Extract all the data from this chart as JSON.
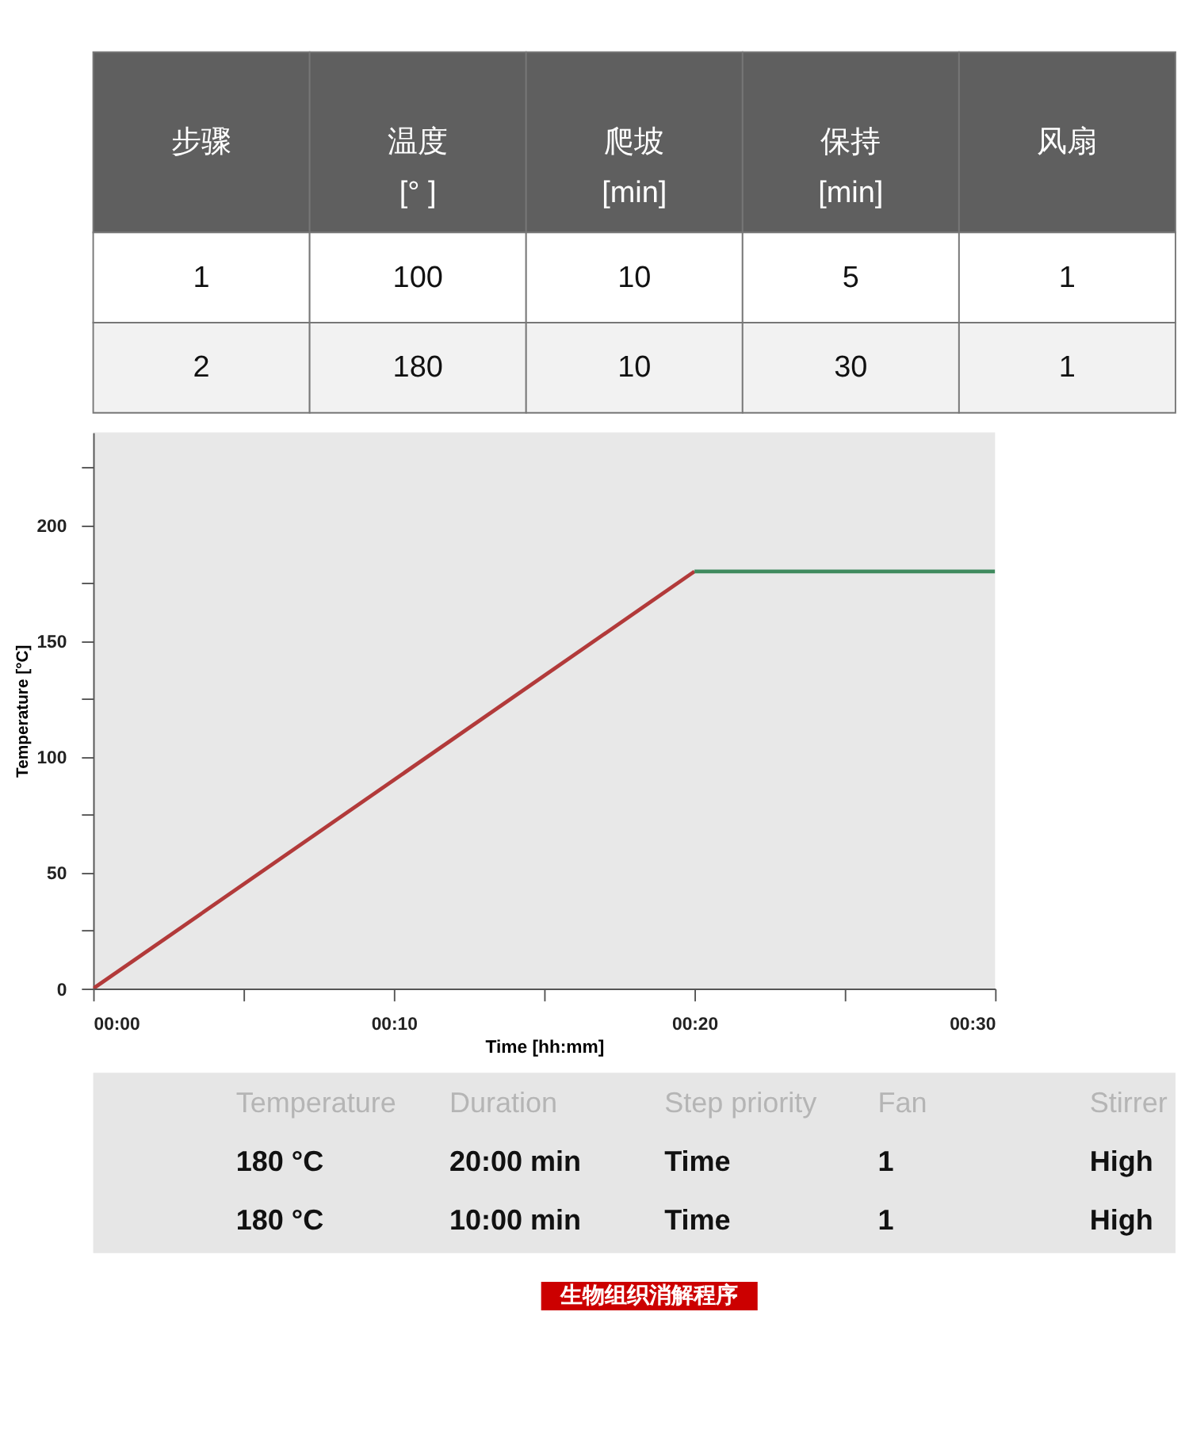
{
  "chart_data": [
    {
      "type": "other",
      "annotations": [
        "步骤",
        "温度\n[°  ]",
        "爬坡\n[min]",
        "保持\n[min]",
        "风扇",
        "1",
        "100",
        "10",
        "5",
        "1",
        "2",
        "180",
        "10",
        "30",
        "1"
      ]
    },
    {
      "type": "line",
      "xlabel": "Time [hh:mm]",
      "ylabel": "Temperature [°C]",
      "xlim": [
        0,
        30
      ],
      "ylim": [
        0,
        240
      ],
      "xticks": [
        {
          "value": 0,
          "label": "00:00"
        },
        {
          "value": 5,
          "label": null
        },
        {
          "value": 10,
          "label": "00:10"
        },
        {
          "value": 15,
          "label": null
        },
        {
          "value": 20,
          "label": "00:20"
        },
        {
          "value": 25,
          "label": null
        },
        {
          "value": 30,
          "label": "00:30"
        }
      ],
      "yticks": [
        0,
        {
          "value": 25,
          "label": null
        },
        50,
        {
          "value": 75,
          "label": null
        },
        100,
        {
          "value": 125,
          "label": null
        },
        150,
        {
          "value": 175,
          "label": null
        },
        200,
        {
          "value": 225,
          "label": null
        }
      ],
      "grid": false,
      "marker": "none",
      "line_style": "solid",
      "series": [
        {
          "color": "#b23a3a",
          "x": [
            0,
            20
          ],
          "values": [
            0,
            180
          ]
        },
        {
          "color": "#3f8a5e",
          "x": [
            20,
            30
          ],
          "values": [
            180,
            180
          ]
        }
      ]
    },
    {
      "type": "other",
      "title": "生物组织消解程序",
      "annotations": [
        "Temperature",
        "Duration",
        "Step priority",
        "Fan",
        "Stirrer",
        "180 °C",
        "20:00 min",
        "Time",
        "1",
        "High",
        "180 °C",
        "10:00 min",
        "Time",
        "1",
        "High"
      ]
    }
  ]
}
